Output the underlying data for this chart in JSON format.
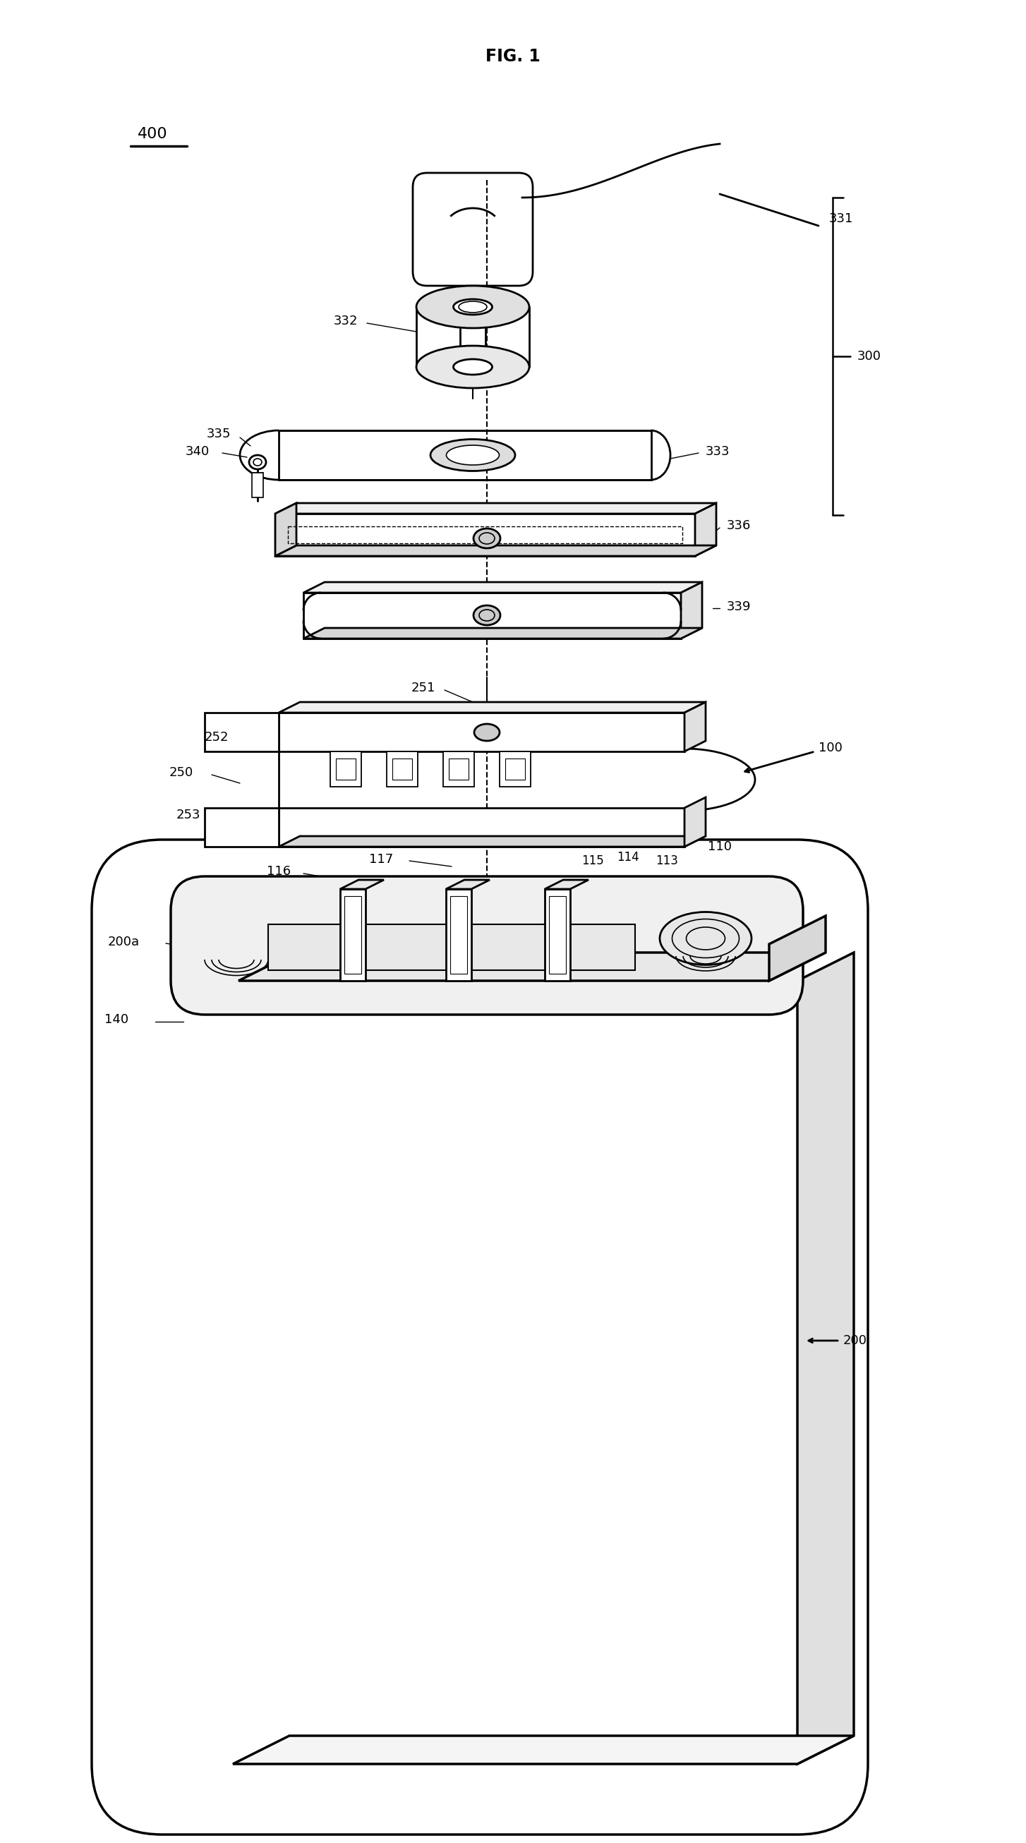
{
  "title": "FIG. 1",
  "bg_color": "#ffffff",
  "lw_main": 2.0,
  "lw_thin": 1.2,
  "lw_label": 1.0,
  "fs_label": 13,
  "fs_title": 17,
  "fig_width": 14.54,
  "fig_height": 26.12
}
